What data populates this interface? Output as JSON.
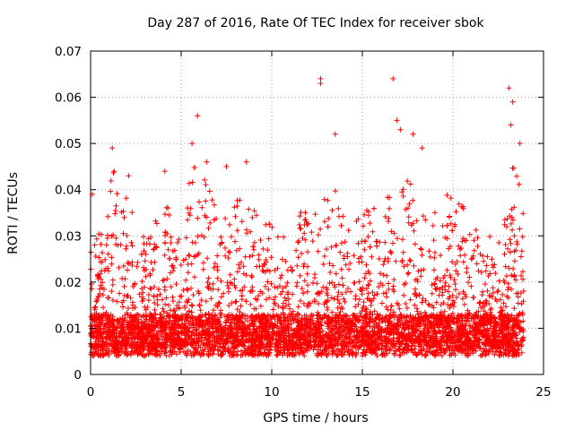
{
  "chart_data": {
    "type": "scatter",
    "title": "Day 287 of 2016, Rate Of TEC Index for receiver sbok",
    "xlabel": "GPS time / hours",
    "ylabel": "ROTI / TECUs",
    "xlim": [
      0,
      25
    ],
    "ylim": [
      0,
      0.07
    ],
    "xticks": [
      0,
      5,
      10,
      15,
      20,
      25
    ],
    "xtick_labels": [
      "0",
      "5",
      "10",
      "15",
      "20",
      "25"
    ],
    "yticks": [
      0,
      0.01,
      0.02,
      0.03,
      0.04,
      0.05,
      0.06,
      0.07
    ],
    "ytick_labels": [
      "0",
      "0.01",
      "0.02",
      "0.03",
      "0.04",
      "0.05",
      "0.06",
      "0.07"
    ],
    "grid": true,
    "marker": "+",
    "color": "#ff0000",
    "series": [
      {
        "name": "ROTI",
        "note": "dense scatter of ~10000 points across 0-23.9 h; baseline 0.005-0.012 TECU with frequent spikes to 0.02-0.045",
        "sample_time_range": [
          0,
          23.9
        ],
        "peaks": [
          {
            "x": 0.1,
            "y": 0.039
          },
          {
            "x": 1.2,
            "y": 0.049
          },
          {
            "x": 1.3,
            "y": 0.044
          },
          {
            "x": 2.1,
            "y": 0.043
          },
          {
            "x": 4.1,
            "y": 0.044
          },
          {
            "x": 5.6,
            "y": 0.05
          },
          {
            "x": 5.9,
            "y": 0.056
          },
          {
            "x": 6.4,
            "y": 0.046
          },
          {
            "x": 7.5,
            "y": 0.045
          },
          {
            "x": 8.6,
            "y": 0.046
          },
          {
            "x": 12.7,
            "y": 0.064
          },
          {
            "x": 12.7,
            "y": 0.063
          },
          {
            "x": 13.5,
            "y": 0.052
          },
          {
            "x": 16.7,
            "y": 0.064
          },
          {
            "x": 16.9,
            "y": 0.055
          },
          {
            "x": 17.1,
            "y": 0.053
          },
          {
            "x": 17.8,
            "y": 0.052
          },
          {
            "x": 18.3,
            "y": 0.049
          },
          {
            "x": 23.1,
            "y": 0.062
          },
          {
            "x": 23.3,
            "y": 0.059
          },
          {
            "x": 23.2,
            "y": 0.054
          },
          {
            "x": 23.7,
            "y": 0.05
          }
        ]
      }
    ]
  }
}
